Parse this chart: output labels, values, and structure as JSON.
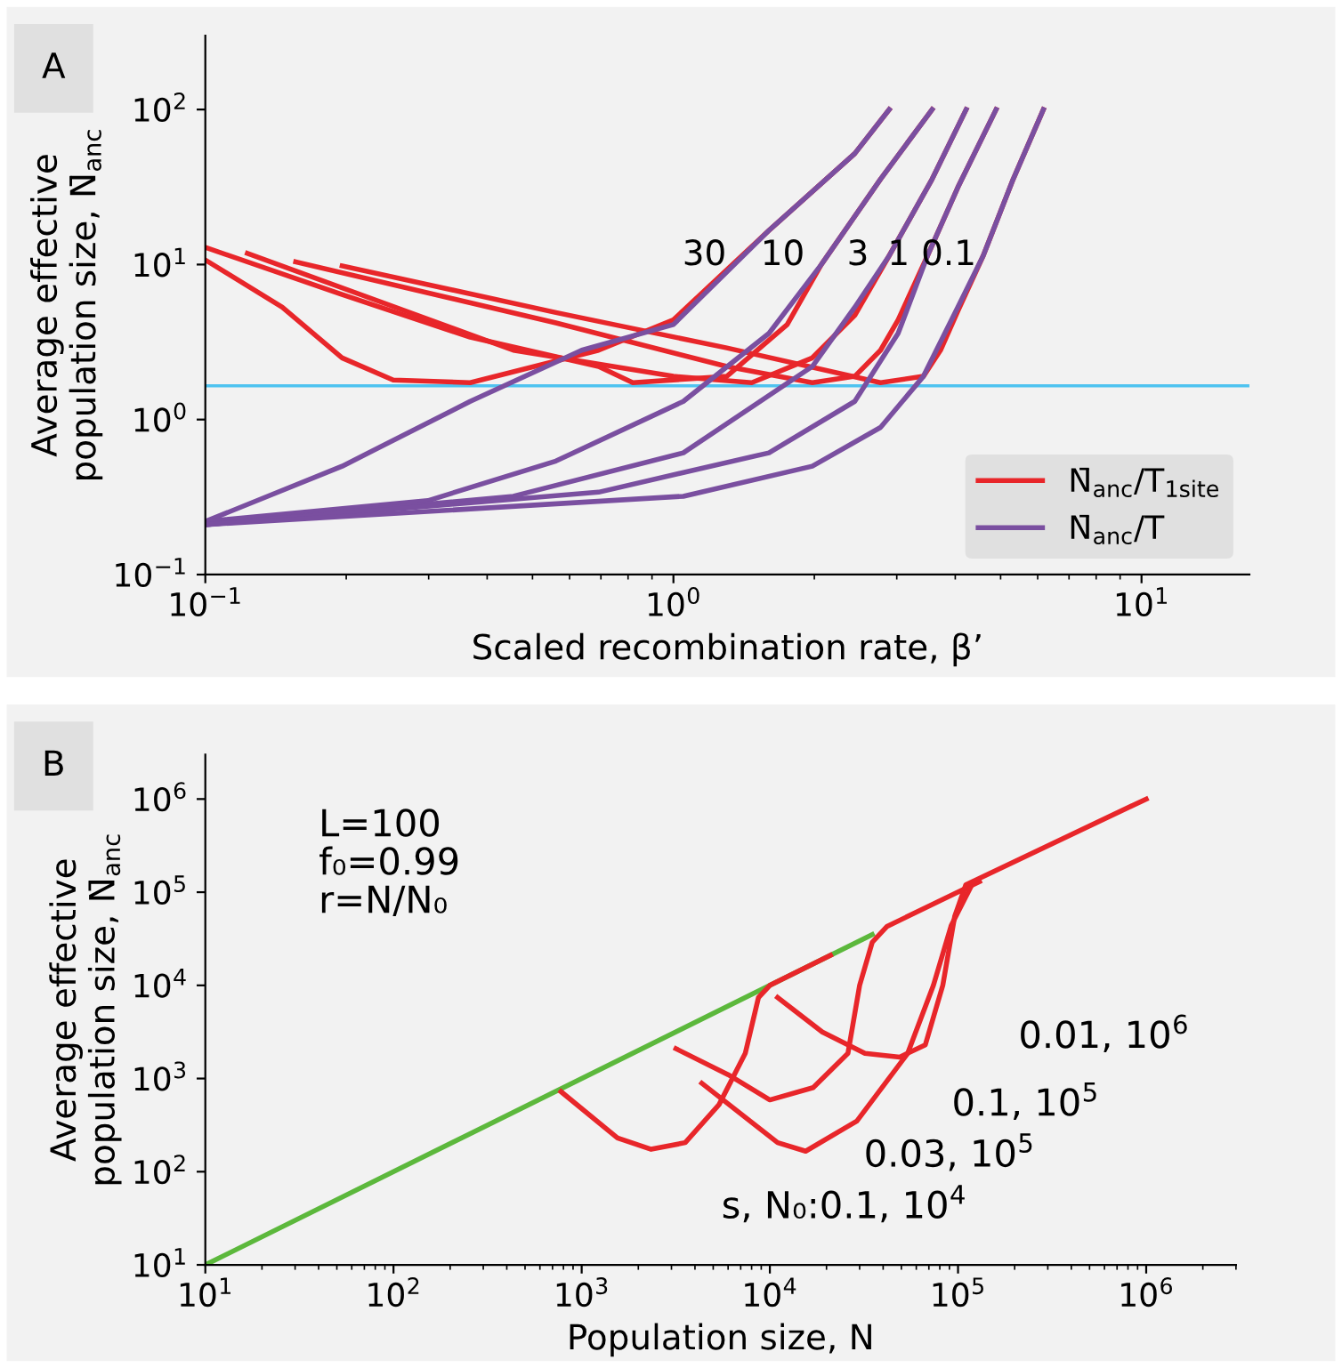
{
  "chart_data": [
    {
      "type": "line",
      "xlabel": "Scaled recombination rate, β’",
      "ylabel": "Average effective\npopulation size, N̄$_{anc}$",
      "log": "xy",
      "grid": false,
      "legend": "bottom right",
      "marker": "none",
      "line_style": "solid",
      "xlim": [
        0.1,
        17
      ],
      "ylim": [
        0.1,
        300
      ],
      "xticks": [
        {
          "value": 0.1,
          "label": "10$^{−1}$"
        },
        {
          "value": 1,
          "label": "10$^{0}$"
        },
        {
          "value": 10,
          "label": "10$^{1}$"
        }
      ],
      "yticks": [
        {
          "value": 0.1,
          "label": "10$^{−1}$"
        },
        {
          "value": 1,
          "label": "10$^{0}$"
        },
        {
          "value": 10,
          "label": "10$^{1}$"
        },
        {
          "value": 100,
          "label": "10$^{2}$"
        }
      ],
      "ref_lines": [
        {
          "axis": "y",
          "value": 1.65,
          "color": "#4fc3f0"
        }
      ],
      "series": [
        {
          "name": "N̄$_{anc}$/T$_{1site}$",
          "color": "#e8262a",
          "x": [
            0.1,
            0.146,
            0.196,
            0.252,
            0.368,
            0.692,
            1.0,
            1.6,
            2.44,
            2.89
          ],
          "values": [
            10.7,
            5.3,
            2.5,
            1.8,
            1.73,
            2.8,
            4.4,
            16.6,
            52,
            100
          ]
        },
        {
          "color": "#e8262a",
          "x": [
            0.1,
            0.196,
            0.368,
            0.692,
            0.819,
            1.3,
            1.75,
            2.07,
            2.77,
            3.57
          ],
          "values": [
            12.9,
            6.4,
            3.4,
            2.2,
            1.73,
            1.9,
            4.1,
            10.0,
            35.6,
            100
          ]
        },
        {
          "color": "#e8262a",
          "x": [
            0.123,
            0.455,
            1.0,
            1.47,
            1.98,
            2.44,
            2.89,
            3.57,
            4.22
          ],
          "values": [
            11.8,
            2.8,
            1.9,
            1.73,
            2.5,
            4.7,
            11.4,
            35.6,
            100
          ]
        },
        {
          "color": "#e8262a",
          "x": [
            0.156,
            0.561,
            1.3,
            1.98,
            2.44,
            2.77,
            3.02,
            3.49,
            4.05,
            4.89
          ],
          "values": [
            10.4,
            4.2,
            2.2,
            1.73,
            1.9,
            2.8,
            4.4,
            11.4,
            31.4,
            100
          ]
        },
        {
          "color": "#e8262a",
          "x": [
            0.196,
            0.561,
            1.3,
            2.77,
            3.42,
            3.72,
            4.05,
            4.59,
            5.32,
            6.17
          ],
          "values": [
            9.8,
            4.9,
            2.9,
            1.73,
            1.9,
            2.8,
            5.0,
            11.4,
            35.6,
            100
          ]
        },
        {
          "name": "N̄$_{anc}$/T",
          "color": "#7a4fa0",
          "x": [
            0.1,
            0.196,
            0.368,
            0.637,
            1.0,
            1.6,
            2.44,
            2.89
          ],
          "values": [
            0.22,
            0.5,
            1.31,
            2.8,
            4.1,
            16.6,
            52,
            100
          ]
        },
        {
          "color": "#7a4fa0",
          "x": [
            0.1,
            0.299,
            0.561,
            1.05,
            1.6,
            2.07,
            2.77,
            3.57
          ],
          "values": [
            0.22,
            0.3,
            0.54,
            1.31,
            3.6,
            10.0,
            35.6,
            100
          ]
        },
        {
          "color": "#7a4fa0",
          "x": [
            0.1,
            0.455,
            1.05,
            1.98,
            2.44,
            2.89,
            3.57,
            4.22
          ],
          "values": [
            0.21,
            0.32,
            0.61,
            2.2,
            5.3,
            11.4,
            35.6,
            100
          ]
        },
        {
          "color": "#7a4fa0",
          "x": [
            0.1,
            0.692,
            1.6,
            2.44,
            3.02,
            3.49,
            4.05,
            4.89
          ],
          "values": [
            0.21,
            0.34,
            0.61,
            1.31,
            3.6,
            11.4,
            31.4,
            100
          ]
        },
        {
          "color": "#7a4fa0",
          "x": [
            0.1,
            1.05,
            1.98,
            2.77,
            3.42,
            4.05,
            4.59,
            5.32,
            6.17
          ],
          "values": [
            0.21,
            0.32,
            0.5,
            0.89,
            1.9,
            5.3,
            11.4,
            35.6,
            100
          ]
        }
      ],
      "annotations": [
        "A",
        "30",
        "10",
        "3",
        "1",
        "0.1"
      ]
    },
    {
      "type": "line",
      "xlabel": "Population size, N",
      "ylabel": "Average effective\npopulation size, N̄$_{anc}$",
      "log": "xy",
      "grid": false,
      "legend": false,
      "marker": "none",
      "line_style": "solid",
      "xlim": [
        10,
        3000000
      ],
      "ylim": [
        10,
        3000000
      ],
      "xticks": [
        {
          "value": 10,
          "label": "10$^{1}$"
        },
        {
          "value": 100,
          "label": "10$^{2}$"
        },
        {
          "value": 1000,
          "label": "10$^{3}$"
        },
        {
          "value": 10000,
          "label": "10$^{4}$"
        },
        {
          "value": 100000,
          "label": "10$^{5}$"
        },
        {
          "value": 1000000,
          "label": "10$^{6}$"
        }
      ],
      "yticks": [
        {
          "value": 10,
          "label": "10$^{1}$"
        },
        {
          "value": 100,
          "label": "10$^{2}$"
        },
        {
          "value": 1000,
          "label": "10$^{3}$"
        },
        {
          "value": 10000,
          "label": "10$^{4}$"
        },
        {
          "value": 100000,
          "label": "10$^{5}$"
        },
        {
          "value": 1000000,
          "label": "10$^{6}$"
        }
      ],
      "series": [
        {
          "color": "#5cb83c",
          "x": [
            10,
            35000
          ],
          "values": [
            10,
            35000
          ]
        },
        {
          "color": "#e8262a",
          "x": [
            776,
            1550,
            2340,
            3550,
            5370,
            7400,
            8700,
            10000,
            21000
          ],
          "values": [
            724,
            230,
            174,
            205,
            525,
            1860,
            7400,
            10000,
            21000
          ]
        },
        {
          "color": "#e8262a",
          "x": [
            3170,
            6000,
            10000,
            17000,
            26000,
            30000,
            35000,
            42000,
            130000
          ],
          "values": [
            2090,
            1100,
            590,
            800,
            1860,
            10000,
            29000,
            43000,
            130000
          ]
        },
        {
          "color": "#e8262a",
          "x": [
            4350,
            11000,
            15500,
            29000,
            54000,
            74000,
            92000,
            120000
          ],
          "values": [
            890,
            205,
            166,
            350,
            1860,
            10000,
            44000,
            126000
          ]
        },
        {
          "color": "#e8262a",
          "x": [
            11000,
            19000,
            32000,
            49000,
            67000,
            83000,
            96000,
            110000,
            1000000
          ],
          "values": [
            7400,
            3160,
            1860,
            1700,
            2300,
            10000,
            55000,
            120000,
            1000000
          ]
        }
      ],
      "annotations": [
        "B",
        "L=100",
        "f₀=0.99",
        "r=N/N₀",
        "0.01, 10$^{6}$",
        "0.1, 10$^{5}$",
        "0.03, 10$^{5}$",
        "s, N₀:0.1, 10$^{4}$"
      ]
    }
  ]
}
